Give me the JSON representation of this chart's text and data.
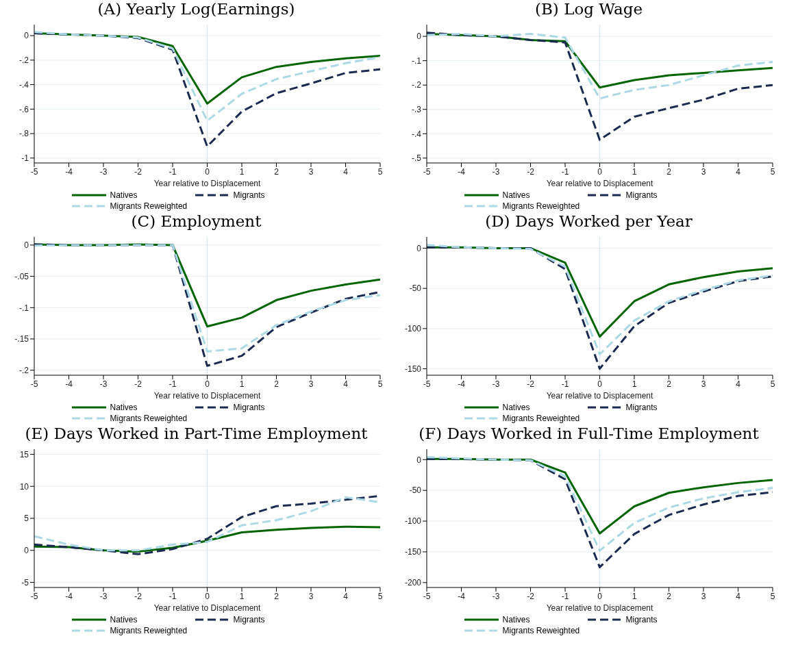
{
  "chart_data": [
    {
      "type": "line",
      "title": "(A) Yearly Log(Earnings)",
      "xlabel": "Year relative to Displacement",
      "x": [
        -5,
        -4,
        -3,
        -2,
        -1,
        0,
        1,
        2,
        3,
        4,
        5
      ],
      "xlim": [
        -5,
        5
      ],
      "xticks": [
        -5,
        -4,
        -3,
        -2,
        -1,
        0,
        1,
        2,
        3,
        4,
        5
      ],
      "ylim": [
        -1.04,
        0.09
      ],
      "yticks": [
        {
          "value": 0,
          "label": "0"
        },
        {
          "value": -0.2,
          "label": "-.2"
        },
        {
          "value": -0.4,
          "label": "-.4"
        },
        {
          "value": -0.6,
          "label": "-.6"
        },
        {
          "value": -0.8,
          "label": "-.8"
        },
        {
          "value": -1,
          "label": "-1"
        }
      ],
      "grid": "y",
      "legend": "bottom",
      "marker": "none",
      "ref_lines": [
        {
          "axis": "x",
          "value": 0,
          "color": "#dde9ee"
        }
      ],
      "series": [
        {
          "name": "Natives",
          "color": "#006400",
          "line_style": "solid",
          "values": [
            0.02,
            0.01,
            0,
            -0.01,
            -0.085,
            -0.555,
            -0.34,
            -0.255,
            -0.215,
            -0.185,
            -0.165
          ]
        },
        {
          "name": "Migrants",
          "color": "#1a2a50",
          "line_style": "dashed",
          "values": [
            0.02,
            0.01,
            0,
            -0.02,
            -0.115,
            -0.905,
            -0.62,
            -0.47,
            -0.39,
            -0.305,
            -0.275
          ]
        },
        {
          "name": "Migrants Reweighted",
          "color": "#add8e6",
          "line_style": "dashed",
          "values": [
            0.03,
            0.01,
            0,
            -0.015,
            -0.105,
            -0.695,
            -0.475,
            -0.355,
            -0.29,
            -0.225,
            -0.175
          ]
        }
      ]
    },
    {
      "type": "line",
      "title": "(B) Log Wage",
      "xlabel": "Year relative to Displacement",
      "x": [
        -5,
        -4,
        -3,
        -2,
        -1,
        0,
        1,
        2,
        3,
        4,
        5
      ],
      "xlim": [
        -5,
        5
      ],
      "xticks": [
        -5,
        -4,
        -3,
        -2,
        -1,
        0,
        1,
        2,
        3,
        4,
        5
      ],
      "ylim": [
        -0.52,
        0.048
      ],
      "yticks": [
        {
          "value": 0,
          "label": "0"
        },
        {
          "value": -0.1,
          "label": "-.1"
        },
        {
          "value": -0.2,
          "label": "-.2"
        },
        {
          "value": -0.3,
          "label": "-.3"
        },
        {
          "value": -0.4,
          "label": "-.4"
        },
        {
          "value": -0.5,
          "label": "-.5"
        }
      ],
      "grid": "y",
      "legend": "bottom",
      "marker": "none",
      "ref_lines": [
        {
          "axis": "x",
          "value": 0,
          "color": "#dde9ee"
        }
      ],
      "series": [
        {
          "name": "Natives",
          "color": "#006400",
          "line_style": "solid",
          "values": [
            0.01,
            0.005,
            0,
            -0.015,
            -0.02,
            -0.21,
            -0.18,
            -0.16,
            -0.15,
            -0.14,
            -0.13
          ]
        },
        {
          "name": "Migrants",
          "color": "#1a2a50",
          "line_style": "dashed",
          "values": [
            0.015,
            0.005,
            0,
            -0.015,
            -0.025,
            -0.425,
            -0.33,
            -0.295,
            -0.26,
            -0.215,
            -0.2
          ]
        },
        {
          "name": "Migrants Reweighted",
          "color": "#add8e6",
          "line_style": "dashed",
          "values": [
            0.005,
            0.01,
            0,
            0.01,
            -0.005,
            -0.255,
            -0.22,
            -0.2,
            -0.16,
            -0.12,
            -0.105
          ]
        }
      ]
    },
    {
      "type": "line",
      "title": "(C) Employment",
      "xlabel": "Year relative to Displacement",
      "x": [
        -5,
        -4,
        -3,
        -2,
        -1,
        0,
        1,
        2,
        3,
        4,
        5
      ],
      "xlim": [
        -5,
        5
      ],
      "xticks": [
        -5,
        -4,
        -3,
        -2,
        -1,
        0,
        1,
        2,
        3,
        4,
        5
      ],
      "ylim": [
        -0.208,
        0.013
      ],
      "yticks": [
        {
          "value": 0,
          "label": "0"
        },
        {
          "value": -0.05,
          "label": "-.05"
        },
        {
          "value": -0.1,
          "label": "-.1"
        },
        {
          "value": -0.15,
          "label": "-.15"
        },
        {
          "value": -0.2,
          "label": "-.2"
        }
      ],
      "grid": "y",
      "legend": "bottom",
      "marker": "none",
      "ref_lines": [
        {
          "axis": "x",
          "value": 0,
          "color": "#dde9ee"
        }
      ],
      "series": [
        {
          "name": "Natives",
          "color": "#006400",
          "line_style": "solid",
          "values": [
            0.001,
            0,
            0,
            0.001,
            0,
            -0.13,
            -0.116,
            -0.088,
            -0.073,
            -0.063,
            -0.055
          ]
        },
        {
          "name": "Migrants",
          "color": "#1a2a50",
          "line_style": "dashed",
          "values": [
            0.001,
            0,
            0,
            0,
            0,
            -0.193,
            -0.177,
            -0.131,
            -0.108,
            -0.086,
            -0.075
          ]
        },
        {
          "name": "Migrants Reweighted",
          "color": "#add8e6",
          "line_style": "dashed",
          "values": [
            -0.001,
            0,
            0,
            0,
            0,
            -0.17,
            -0.165,
            -0.128,
            -0.106,
            -0.088,
            -0.08
          ]
        }
      ]
    },
    {
      "type": "line",
      "title": "(D) Days Worked per Year",
      "xlabel": "Year relative to Displacement",
      "x": [
        -5,
        -4,
        -3,
        -2,
        -1,
        0,
        1,
        2,
        3,
        4,
        5
      ],
      "xlim": [
        -5,
        5
      ],
      "xticks": [
        -5,
        -4,
        -3,
        -2,
        -1,
        0,
        1,
        2,
        3,
        4,
        5
      ],
      "ylim": [
        -158,
        14
      ],
      "yticks": [
        0,
        -50,
        -100,
        -150
      ],
      "grid": "y",
      "legend": "bottom",
      "marker": "none",
      "ref_lines": [
        {
          "axis": "x",
          "value": 0,
          "color": "#dde9ee"
        }
      ],
      "series": [
        {
          "name": "Natives",
          "color": "#006400",
          "line_style": "solid",
          "values": [
            1,
            1,
            0,
            0,
            -18,
            -110,
            -66,
            -45,
            -36,
            -29,
            -25
          ]
        },
        {
          "name": "Migrants",
          "color": "#1a2a50",
          "line_style": "dashed",
          "values": [
            1,
            1,
            0,
            0,
            -26,
            -150,
            -97,
            -68,
            -54,
            -41,
            -35
          ]
        },
        {
          "name": "Migrants Reweighted",
          "color": "#add8e6",
          "line_style": "dashed",
          "values": [
            4,
            1,
            0,
            -1,
            -23,
            -132,
            -90,
            -66,
            -52,
            -40,
            -34
          ]
        }
      ]
    },
    {
      "type": "line",
      "title": "(E) Days Worked in Part-Time Employment",
      "xlabel": "Year relative to Displacement",
      "x": [
        -5,
        -4,
        -3,
        -2,
        -1,
        0,
        1,
        2,
        3,
        4,
        5
      ],
      "xlim": [
        -5,
        5
      ],
      "xticks": [
        -5,
        -4,
        -3,
        -2,
        -1,
        0,
        1,
        2,
        3,
        4,
        5
      ],
      "ylim": [
        -5.8,
        15.8
      ],
      "yticks": [
        -5,
        0,
        5,
        10,
        15
      ],
      "grid": "y",
      "legend": "bottom",
      "marker": "none",
      "ref_lines": [
        {
          "axis": "x",
          "value": 0,
          "color": "#dde9ee"
        }
      ],
      "series": [
        {
          "name": "Natives",
          "color": "#006400",
          "line_style": "solid",
          "values": [
            0.6,
            0.5,
            0,
            -0.2,
            0.4,
            1.5,
            2.8,
            3.2,
            3.5,
            3.7,
            3.6
          ]
        },
        {
          "name": "Migrants",
          "color": "#1a2a50",
          "line_style": "dashed",
          "values": [
            0.9,
            0.5,
            0,
            -0.6,
            0.2,
            1.8,
            5.2,
            6.9,
            7.3,
            7.9,
            8.5
          ]
        },
        {
          "name": "Migrants Reweighted",
          "color": "#add8e6",
          "line_style": "dashed",
          "values": [
            2.2,
            0.9,
            0,
            0,
            0.9,
            1.3,
            3.9,
            4.7,
            6.1,
            8.3,
            7.5
          ]
        }
      ]
    },
    {
      "type": "line",
      "title": "(F) Days Worked in Full-Time Employment",
      "xlabel": "Year relative to Displacement",
      "x": [
        -5,
        -4,
        -3,
        -2,
        -1,
        0,
        1,
        2,
        3,
        4,
        5
      ],
      "xlim": [
        -5,
        5
      ],
      "xticks": [
        -5,
        -4,
        -3,
        -2,
        -1,
        0,
        1,
        2,
        3,
        4,
        5
      ],
      "ylim": [
        -208,
        17
      ],
      "yticks": [
        0,
        -50,
        -100,
        -150,
        -200
      ],
      "grid": "y",
      "legend": "bottom",
      "marker": "none",
      "ref_lines": [
        {
          "axis": "x",
          "value": 0,
          "color": "#dde9ee"
        }
      ],
      "series": [
        {
          "name": "Natives",
          "color": "#006400",
          "line_style": "solid",
          "values": [
            1,
            1,
            0,
            0,
            -21,
            -120,
            -76,
            -54,
            -45,
            -38,
            -33
          ]
        },
        {
          "name": "Migrants",
          "color": "#1a2a50",
          "line_style": "dashed",
          "values": [
            1,
            1,
            0,
            -1,
            -32,
            -175,
            -121,
            -90,
            -73,
            -59,
            -53
          ]
        },
        {
          "name": "Migrants Reweighted",
          "color": "#add8e6",
          "line_style": "dashed",
          "values": [
            4,
            2,
            0,
            -1,
            -27,
            -148,
            -103,
            -78,
            -63,
            -53,
            -46
          ]
        }
      ]
    }
  ]
}
